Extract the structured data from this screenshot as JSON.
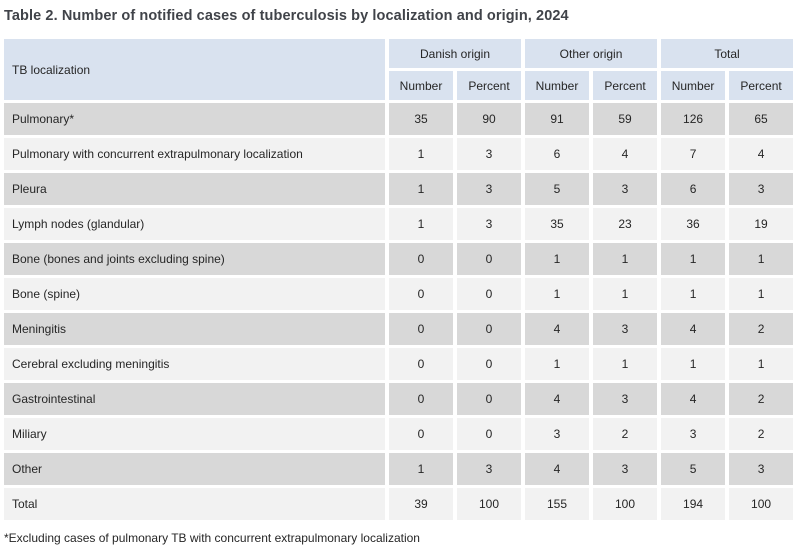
{
  "title": "Table 2. Number of notified cases of tuberculosis by localization and origin, 2024",
  "footnote": "*Excluding cases of pulmonary TB with concurrent extrapulmonary localization",
  "colors": {
    "header_bg": "#d9e2ef",
    "row_dark": "#d8d8d8",
    "row_light": "#f2f2f2",
    "title_text": "#404349",
    "cell_text": "#262626"
  },
  "table": {
    "row_header_label": "TB localization",
    "groups": [
      {
        "label": "Danish origin"
      },
      {
        "label": "Other origin"
      },
      {
        "label": "Total"
      }
    ],
    "sub_headers": [
      "Number",
      "Percent",
      "Number",
      "Percent",
      "Number",
      "Percent"
    ],
    "rows": [
      {
        "label": "Pulmonary*",
        "values": [
          35,
          90,
          91,
          59,
          126,
          65
        ]
      },
      {
        "label": "Pulmonary with concurrent extrapulmonary localization",
        "values": [
          1,
          3,
          6,
          4,
          7,
          4
        ]
      },
      {
        "label": "Pleura",
        "values": [
          1,
          3,
          5,
          3,
          6,
          3
        ]
      },
      {
        "label": "Lymph nodes (glandular)",
        "values": [
          1,
          3,
          35,
          23,
          36,
          19
        ]
      },
      {
        "label": "Bone (bones and joints excluding spine)",
        "values": [
          0,
          0,
          1,
          1,
          1,
          1
        ]
      },
      {
        "label": "Bone (spine)",
        "values": [
          0,
          0,
          1,
          1,
          1,
          1
        ]
      },
      {
        "label": "Meningitis",
        "values": [
          0,
          0,
          4,
          3,
          4,
          2
        ]
      },
      {
        "label": "Cerebral excluding meningitis",
        "values": [
          0,
          0,
          1,
          1,
          1,
          1
        ]
      },
      {
        "label": "Gastrointestinal",
        "values": [
          0,
          0,
          4,
          3,
          4,
          2
        ]
      },
      {
        "label": "Miliary",
        "values": [
          0,
          0,
          3,
          2,
          3,
          2
        ]
      },
      {
        "label": "Other",
        "values": [
          1,
          3,
          4,
          3,
          5,
          3
        ]
      },
      {
        "label": "Total",
        "values": [
          39,
          100,
          155,
          100,
          194,
          100
        ]
      }
    ]
  }
}
